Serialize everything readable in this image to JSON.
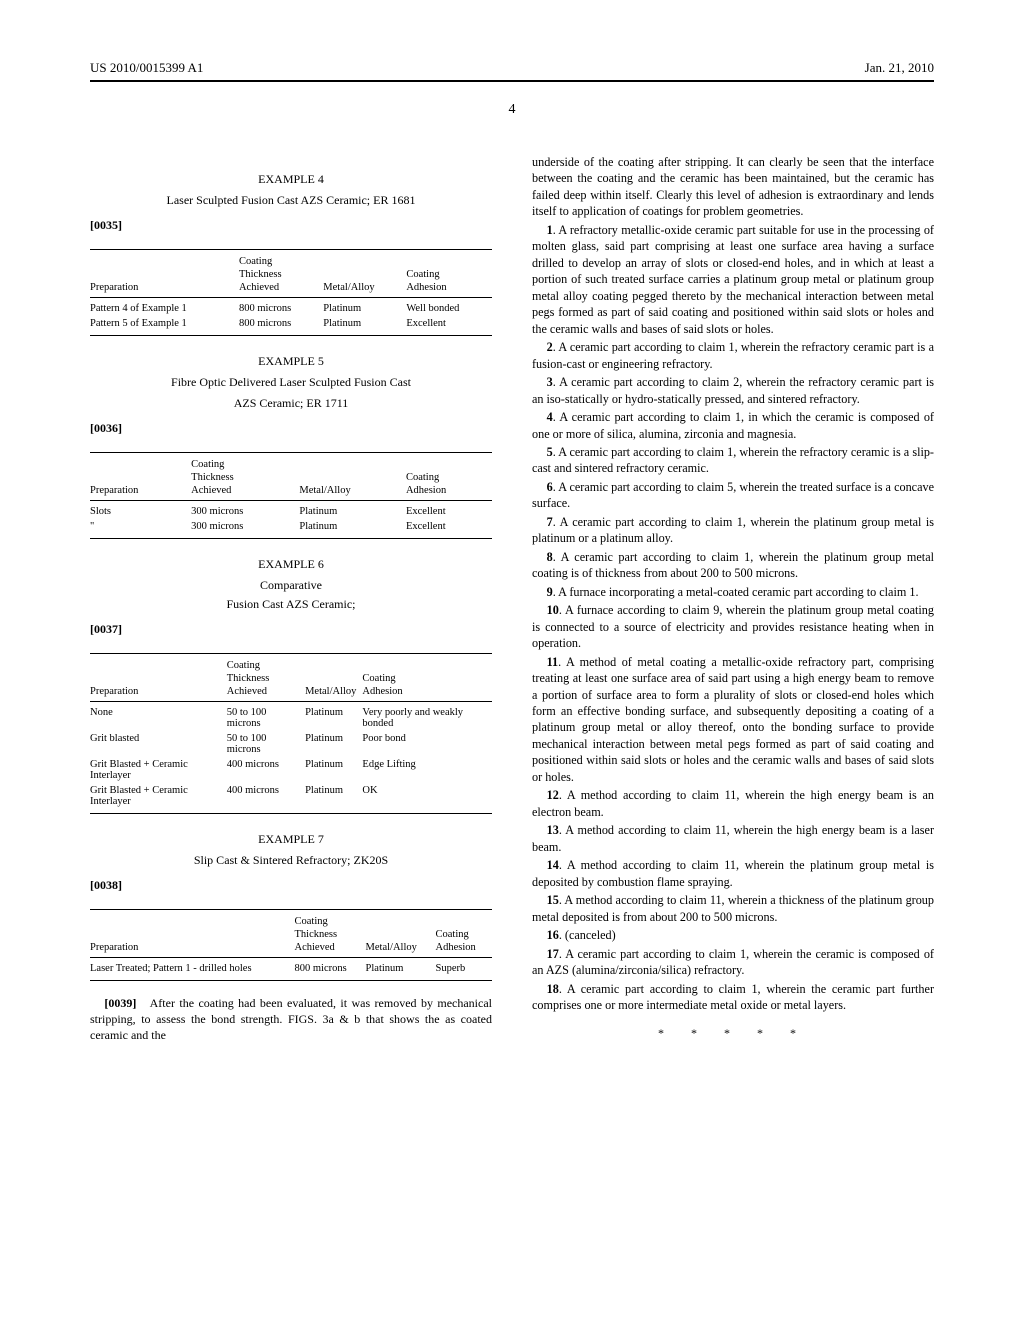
{
  "header": {
    "patent_no": "US 2010/0015399 A1",
    "date": "Jan. 21, 2010",
    "page_number": "4"
  },
  "left": {
    "example4": {
      "title": "EXAMPLE 4",
      "subtitle": "Laser Sculpted Fusion Cast AZS Ceramic; ER 1681",
      "para_label": "[0035]",
      "table": {
        "headers_top": [
          "",
          "Coating",
          "",
          ""
        ],
        "headers_mid": [
          "",
          "Thickness",
          "",
          "Coating"
        ],
        "headers_bot": [
          "Preparation",
          "Achieved",
          "Metal/Alloy",
          "Adhesion"
        ],
        "rows": [
          [
            "Pattern 4 of Example 1",
            "800 microns",
            "Platinum",
            "Well bonded"
          ],
          [
            "Pattern 5 of Example 1",
            "800 microns",
            "Platinum",
            "Excellent"
          ]
        ]
      }
    },
    "example5": {
      "title": "EXAMPLE 5",
      "subtitle1": "Fibre Optic Delivered Laser Sculpted Fusion Cast",
      "subtitle2": "AZS Ceramic; ER 1711",
      "para_label": "[0036]",
      "table": {
        "headers_top": [
          "",
          "Coating",
          "",
          ""
        ],
        "headers_mid": [
          "",
          "Thickness",
          "",
          "Coating"
        ],
        "headers_bot": [
          "Preparation",
          "Achieved",
          "Metal/Alloy",
          "Adhesion"
        ],
        "rows": [
          [
            "Slots",
            "300 microns",
            "Platinum",
            "Excellent"
          ],
          [
            "\"",
            "300 microns",
            "Platinum",
            "Excellent"
          ]
        ]
      }
    },
    "example6": {
      "title": "EXAMPLE 6",
      "comparative": "Comparative",
      "subtitle": "Fusion Cast AZS Ceramic;",
      "para_label": "[0037]",
      "table": {
        "headers_top": [
          "",
          "Coating",
          "",
          ""
        ],
        "headers_mid": [
          "",
          "Thickness",
          "",
          "Coating"
        ],
        "headers_bot": [
          "Preparation",
          "Achieved",
          "Metal/Alloy",
          "Adhesion"
        ],
        "rows": [
          [
            "None",
            "50 to 100 microns",
            "Platinum",
            "Very poorly and weakly bonded"
          ],
          [
            "Grit blasted",
            "50 to 100 microns",
            "Platinum",
            "Poor bond"
          ],
          [
            "Grit Blasted + Ceramic Interlayer",
            "400 microns",
            "Platinum",
            "Edge Lifting"
          ],
          [
            "Grit Blasted + Ceramic Interlayer",
            "400 microns",
            "Platinum",
            "OK"
          ]
        ]
      }
    },
    "example7": {
      "title": "EXAMPLE 7",
      "subtitle": "Slip Cast & Sintered Refractory; ZK20S",
      "para_label": "[0038]",
      "table": {
        "headers_top": [
          "",
          "Coating",
          "",
          ""
        ],
        "headers_mid": [
          "",
          "Thickness",
          "",
          "Coating"
        ],
        "headers_bot": [
          "Preparation",
          "Achieved",
          "Metal/Alloy",
          "Adhesion"
        ],
        "rows": [
          [
            "Laser Treated; Pattern 1 - drilled holes",
            "800 microns",
            "Platinum",
            "Superb"
          ]
        ]
      }
    },
    "closing": {
      "label": "[0039]",
      "text": "After the coating had been evaluated, it was removed by mechanical stripping, to assess the bond strength. FIGS. 3a & b that shows the as coated ceramic and the"
    }
  },
  "right": {
    "intro": "underside of the coating after stripping. It can clearly be seen that the interface between the coating and the ceramic has been maintained, but the ceramic has failed deep within itself. Clearly this level of adhesion is extraordinary and lends itself to application of coatings for problem geometries.",
    "claims": [
      {
        "n": "1",
        "t": ". A refractory metallic-oxide ceramic part suitable for use in the processing of molten glass, said part comprising at least one surface area having a surface drilled to develop an array of slots or closed-end holes, and in which at least a portion of such treated surface carries a platinum group metal or platinum group metal alloy coating pegged thereto by the mechanical interaction between metal pegs formed as part of said coating and positioned within said slots or holes and the ceramic walls and bases of said slots or holes."
      },
      {
        "n": "2",
        "t": ". A ceramic part according to claim 1, wherein the refractory ceramic part is a fusion-cast or engineering refractory."
      },
      {
        "n": "3",
        "t": ". A ceramic part according to claim 2, wherein the refractory ceramic part is an iso-statically or hydro-statically pressed, and sintered refractory."
      },
      {
        "n": "4",
        "t": ". A ceramic part according to claim 1, in which the ceramic is composed of one or more of silica, alumina, zirconia and magnesia."
      },
      {
        "n": "5",
        "t": ". A ceramic part according to claim 1, wherein the refractory ceramic is a slip-cast and sintered refractory ceramic."
      },
      {
        "n": "6",
        "t": ". A ceramic part according to claim 5, wherein the treated surface is a concave surface."
      },
      {
        "n": "7",
        "t": ". A ceramic part according to claim 1, wherein the platinum group metal is platinum or a platinum alloy."
      },
      {
        "n": "8",
        "t": ". A ceramic part according to claim 1, wherein the platinum group metal coating is of thickness from about 200 to 500 microns."
      },
      {
        "n": "9",
        "t": ". A furnace incorporating a metal-coated ceramic part according to claim 1."
      },
      {
        "n": "10",
        "t": ". A furnace according to claim 9, wherein the platinum group metal coating is connected to a source of electricity and provides resistance heating when in operation."
      },
      {
        "n": "11",
        "t": ". A method of metal coating a metallic-oxide refractory part, comprising treating at least one surface area of said part using a high energy beam to remove a portion of surface area to form a plurality of slots or closed-end holes which form an effective bonding surface, and subsequently depositing a coating of a platinum group metal or alloy thereof, onto the bonding surface to provide mechanical interaction between metal pegs formed as part of said coating and positioned within said slots or holes and the ceramic walls and bases of said slots or holes."
      },
      {
        "n": "12",
        "t": ". A method according to claim 11, wherein the high energy beam is an electron beam."
      },
      {
        "n": "13",
        "t": ". A method according to claim 11, wherein the high energy beam is a laser beam."
      },
      {
        "n": "14",
        "t": ". A method according to claim 11, wherein the platinum group metal is deposited by combustion flame spraying."
      },
      {
        "n": "15",
        "t": ". A method according to claim 11, wherein a thickness of the platinum group metal deposited is from about 200 to 500 microns."
      },
      {
        "n": "16",
        "t": ". (canceled)"
      },
      {
        "n": "17",
        "t": ". A ceramic part according to claim 1, wherein the ceramic is composed of an AZS (alumina/zirconia/silica) refractory."
      },
      {
        "n": "18",
        "t": ". A ceramic part according to claim 1, wherein the ceramic part further comprises one or more intermediate metal oxide or metal layers."
      }
    ],
    "stars": "* * * * *"
  }
}
